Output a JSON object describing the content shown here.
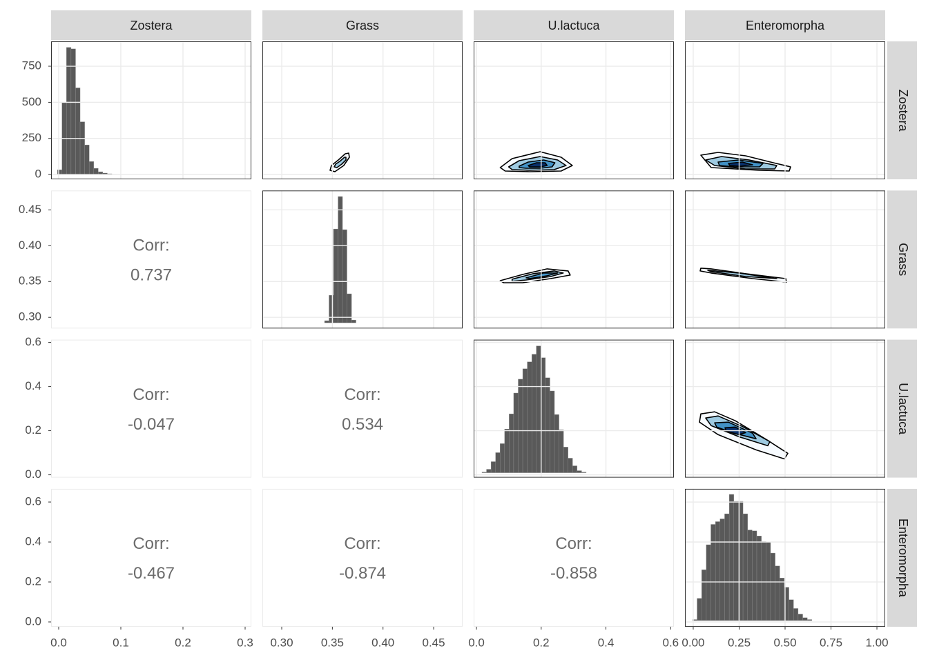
{
  "chart_data": {
    "type": "pairs",
    "grid": true,
    "hist_color": "#595959",
    "contour_colors": [
      "#f7fbff",
      "#9ecae1",
      "#4292c6",
      "#08306b"
    ],
    "corr_label": "Corr:",
    "variables": [
      {
        "name": "Zostera",
        "xlim": [
          -0.0122,
          0.31
        ],
        "xticks": [
          {
            "value": 0,
            "label": "0.0"
          },
          0.1,
          0.2,
          0.3
        ],
        "ylim": [
          -0.0122,
          0.31
        ],
        "hist": {
          "bins": [
            -0.002,
            0.0053,
            0.0126,
            0.0199,
            0.0272,
            0.0345,
            0.0418,
            0.0491,
            0.0564,
            0.0637,
            0.071,
            0.0783,
            0.0856,
            0.0929,
            0.1002
          ],
          "counts": [
            33,
            500,
            880,
            870,
            600,
            365,
            205,
            90,
            43,
            19,
            10,
            5,
            2,
            1
          ],
          "ylim": [
            -33,
            922
          ],
          "yticks": [
            0,
            250,
            500,
            750
          ]
        }
      },
      {
        "name": "Grass",
        "xlim": [
          0.2809,
          0.4786
        ],
        "xticks": [
          {
            "value": 0.3,
            "label": "0.30"
          },
          0.35,
          {
            "value": 0.4,
            "label": "0.40"
          },
          0.45
        ],
        "ylim": [
          0.2845,
          0.477
        ],
        "yticks": [
          {
            "value": 0.3,
            "label": "0.30"
          },
          0.35,
          {
            "value": 0.4,
            "label": "0.40"
          },
          0.45
        ],
        "hist": {
          "bins": [
            0.3423,
            0.3467,
            0.3511,
            0.3556,
            0.36,
            0.3644,
            0.3689,
            0.3733
          ],
          "counts": [
            19,
            252,
            858,
            1155,
            852,
            265,
            25
          ],
          "ylim": [
            -52,
            1210
          ]
        }
      },
      {
        "name": "U.lactuca",
        "xlim": [
          -0.0086,
          0.61
        ],
        "xticks": [
          {
            "value": 0,
            "label": "0.0"
          },
          0.2,
          0.4,
          0.6
        ],
        "ylim": [
          -0.0126,
          0.6126
        ],
        "yticks": [
          {
            "value": 0,
            "label": "0.0"
          },
          0.2,
          0.4,
          0.6
        ],
        "hist": {
          "bins": [
            0.017,
            0.031,
            0.045,
            0.059,
            0.073,
            0.087,
            0.101,
            0.115,
            0.129,
            0.143,
            0.157,
            0.171,
            0.185,
            0.199,
            0.213,
            0.227,
            0.241,
            0.255,
            0.269,
            0.283,
            0.297,
            0.311,
            0.325,
            0.339
          ],
          "counts": [
            2,
            10,
            32,
            58,
            84,
            126,
            170,
            230,
            270,
            300,
            320,
            342,
            366,
            332,
            274,
            236,
            168,
            124,
            74,
            42,
            20,
            6,
            2
          ],
          "ylim": [
            -14,
            384
          ]
        }
      },
      {
        "name": "Enteromorpha",
        "xlim": [
          -0.045,
          1.045
        ],
        "xticks": [
          {
            "value": 0,
            "label": "0.00"
          },
          0.25,
          {
            "value": 0.5,
            "label": "0.50"
          },
          0.75,
          {
            "value": 1,
            "label": "1.00"
          }
        ],
        "ylim": [
          -0.024,
          0.666
        ],
        "yticks": [
          {
            "value": 0,
            "label": "0.0"
          },
          0.2,
          0.4,
          0.6
        ],
        "hist": {
          "bins": [
            -0.004,
            0.021,
            0.046,
            0.071,
            0.096,
            0.121,
            0.146,
            0.171,
            0.196,
            0.221,
            0.246,
            0.271,
            0.296,
            0.321,
            0.346,
            0.371,
            0.396,
            0.421,
            0.446,
            0.471,
            0.496,
            0.521,
            0.546,
            0.571,
            0.596,
            0.621,
            0.646
          ],
          "counts": [
            2,
            48,
            110,
            164,
            208,
            214,
            220,
            231,
            273,
            258,
            258,
            231,
            196,
            194,
            183,
            171,
            170,
            146,
            118,
            92,
            72,
            45,
            26,
            14,
            6,
            2
          ],
          "ylim": [
            -13.5,
            285
          ]
        }
      }
    ],
    "correlations": [
      [
        0.737
      ],
      [
        -0.047,
        0.534
      ],
      [
        -0.467,
        -0.874,
        -0.858
      ]
    ],
    "upper": [
      [
        [
          {
            "x": [
              0.3477,
              0.3491,
              0.3559,
              0.3627,
              0.3661,
              0.3668,
              0.3613,
              0.3525
            ],
            "y": [
              0.0087,
              0.02,
              0.0329,
              0.0474,
              0.049,
              0.0394,
              0.02,
              0.0055
            ]
          },
          {
            "x": [
              0.3518,
              0.3532,
              0.3573,
              0.362,
              0.3634,
              0.3634,
              0.3593,
              0.3545
            ],
            "y": [
              0.0168,
              0.0232,
              0.0297,
              0.0394,
              0.0394,
              0.0329,
              0.0232,
              0.0152
            ]
          }
        ],
        [
          {
            "x": [
              0.0735,
              0.1103,
              0.1968,
              0.2616,
              0.2962,
              0.2616,
              0.1643,
              0.0886
            ],
            "y": [
              0.0152,
              0.0361,
              0.0522,
              0.0394,
              0.02,
              0.0071,
              0.0055,
              0.0071
            ]
          },
          {
            "x": [
              0.0995,
              0.1319,
              0.1968,
              0.2508,
              0.2768,
              0.24,
              0.1643,
              0.1103
            ],
            "y": [
              0.0168,
              0.0313,
              0.041,
              0.0329,
              0.02,
              0.0103,
              0.0087,
              0.0103
            ]
          },
          {
            "x": [
              0.1319,
              0.16,
              0.2076,
              0.2422,
              0.2335,
              0.1968,
              0.1535,
              0.1319
            ],
            "y": [
              0.0184,
              0.0281,
              0.0329,
              0.0265,
              0.0168,
              0.0136,
              0.0136,
              0.0152
            ]
          },
          {
            "x": [
              0.16,
              0.1859,
              0.2119,
              0.2184,
              0.1968,
              0.1643
            ],
            "y": [
              0.02,
              0.0265,
              0.0265,
              0.02,
              0.0168,
              0.0168
            ]
          }
        ],
        [
          {
            "x": [
              0.0414,
              0.1353,
              0.2857,
              0.4361,
              0.5301,
              0.5226,
              0.3609,
              0.0977
            ],
            "y": [
              0.0442,
              0.0506,
              0.0426,
              0.0265,
              0.0168,
              0.0071,
              0.0087,
              0.0152
            ]
          },
          {
            "x": [
              0.0677,
              0.1541,
              0.3045,
              0.4549,
              0.4436,
              0.2857,
              0.1165
            ],
            "y": [
              0.0329,
              0.041,
              0.0329,
              0.02,
              0.012,
              0.012,
              0.02
            ]
          },
          {
            "x": [
              0.1353,
              0.2481,
              0.3797,
              0.3609,
              0.2293,
              0.1429
            ],
            "y": [
              0.0281,
              0.0329,
              0.0249,
              0.0168,
              0.0168,
              0.02
            ]
          },
          {
            "x": [
              0.1917,
              0.2669,
              0.3233,
              0.2556,
              0.1992
            ],
            "y": [
              0.0249,
              0.0281,
              0.0216,
              0.0184,
              0.02
            ]
          }
        ]
      ],
      [
        [
          {
            "x": [
              0.0735,
              0.1427,
              0.2184,
              0.2832,
              0.2897,
              0.2292,
              0.1427,
              0.0843
            ],
            "y": [
              0.3512,
              0.3599,
              0.3677,
              0.3648,
              0.359,
              0.3541,
              0.3483,
              0.3483
            ]
          },
          {
            "x": [
              0.1103,
              0.1751,
              0.24,
              0.2681,
              0.2292,
              0.1535,
              0.1103
            ],
            "y": [
              0.3532,
              0.3609,
              0.3648,
              0.3619,
              0.357,
              0.3522,
              0.3503
            ]
          },
          {
            "x": [
              0.1535,
              0.2076,
              0.2508,
              0.2184,
              0.1643
            ],
            "y": [
              0.3551,
              0.3619,
              0.3619,
              0.358,
              0.3541
            ]
          }
        ],
        [
          {
            "x": [
              0.0414,
              0.0977,
              0.2857,
              0.5038,
              0.5075,
              0.3233,
              0.0977,
              0.0376
            ],
            "y": [
              0.3686,
              0.3677,
              0.3609,
              0.3541,
              0.3493,
              0.3541,
              0.3619,
              0.3648
            ]
          },
          {
            "x": [
              0.0789,
              0.2481,
              0.4549,
              0.2857,
              0.0977
            ],
            "y": [
              0.3657,
              0.3619,
              0.3541,
              0.357,
              0.3638
            ]
          }
        ]
      ],
      [
        [
          {
            "x": [
              0.0414,
              0.1165,
              0.2293,
              0.3985,
              0.515,
              0.4962,
              0.3421,
              0.1353,
              0.0338
            ],
            "y": [
              0.2763,
              0.2857,
              0.2449,
              0.1601,
              0.0973,
              0.0722,
              0.113,
              0.1821,
              0.2386
            ]
          },
          {
            "x": [
              0.0677,
              0.1353,
              0.2669,
              0.4173,
              0.406,
              0.2481,
              0.0977
            ],
            "y": [
              0.2575,
              0.2669,
              0.2198,
              0.1507,
              0.1319,
              0.1727,
              0.2229
            ]
          },
          {
            "x": [
              0.1165,
              0.1917,
              0.3233,
              0.3421,
              0.2105,
              0.1278
            ],
            "y": [
              0.2355,
              0.2386,
              0.1884,
              0.1633,
              0.1915,
              0.2166
            ]
          },
          {
            "x": [
              0.1729,
              0.2293,
              0.2857,
              0.2481,
              0.1805
            ],
            "y": [
              0.2135,
              0.2166,
              0.1915,
              0.1821,
              0.1978
            ]
          }
        ]
      ]
    ]
  }
}
